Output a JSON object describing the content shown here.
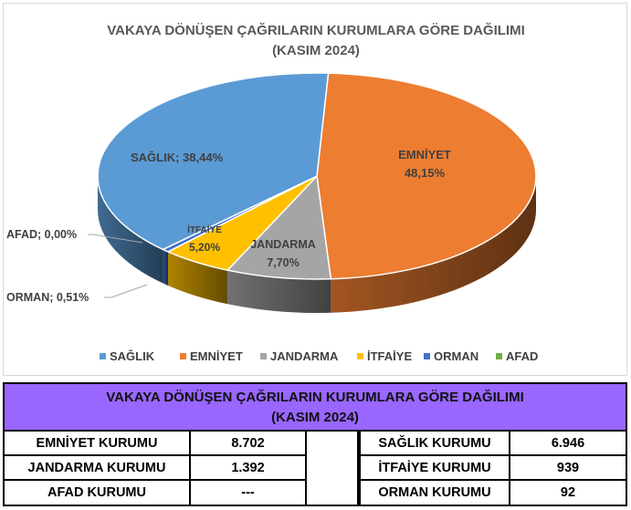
{
  "chart_data": {
    "type": "pie",
    "title_line1": "VAKAYA DÖNÜŞEN ÇAĞRILARIN KURUMLARA GÖRE DAĞILIMI",
    "title_line2": "(KASIM 2024)",
    "legend_position": "bottom",
    "slices": [
      {
        "name": "SAĞLIK",
        "percent": 38.44,
        "label": "SAĞLIK; 38,44%",
        "color": "#5b9bd5"
      },
      {
        "name": "EMNİYET",
        "percent": 48.15,
        "label_name": "EMNİYET",
        "label_value": "48,15%",
        "color": "#ed7d31"
      },
      {
        "name": "JANDARMA",
        "percent": 7.7,
        "label_name": "JANDARMA",
        "label_value": "7,70%",
        "color": "#a5a5a5"
      },
      {
        "name": "İTFAİYE",
        "percent": 5.2,
        "label_name": "İTFAİYE",
        "label_value": "5,20%",
        "color": "#ffc000"
      },
      {
        "name": "ORMAN",
        "percent": 0.51,
        "label": "ORMAN; 0,51%",
        "color": "#4472c4"
      },
      {
        "name": "AFAD",
        "percent": 0.0,
        "label": "AFAD; 0,00%",
        "color": "#70ad47"
      }
    ]
  },
  "table": {
    "title_line1": "VAKAYA DÖNÜŞEN ÇAĞRILARIN KURUMLARA GÖRE DAĞILIMI",
    "title_line2": "(KASIM 2024)",
    "rows": [
      {
        "left_name": "EMNİYET KURUMU",
        "left_value": "8.702",
        "right_name": "SAĞLIK KURUMU",
        "right_value": "6.946"
      },
      {
        "left_name": "JANDARMA KURUMU",
        "left_value": "1.392",
        "right_name": "İTFAİYE KURUMU",
        "right_value": "939"
      },
      {
        "left_name": "AFAD KURUMU",
        "left_value": "---",
        "right_name": "ORMAN KURUMU",
        "right_value": "92"
      }
    ]
  }
}
